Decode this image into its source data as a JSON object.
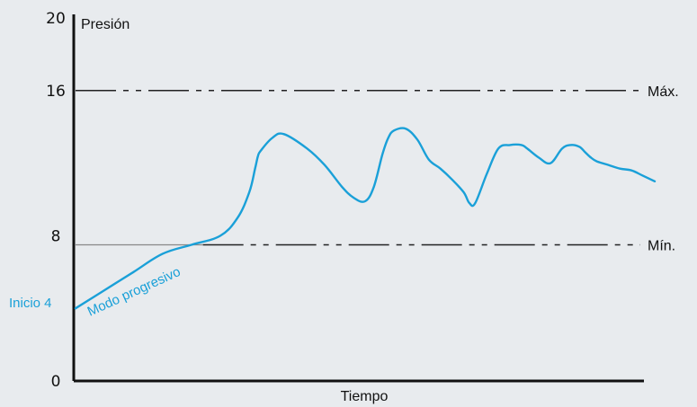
{
  "chart_data": {
    "type": "line",
    "xlabel": "Tiempo",
    "ylabel": "Presión",
    "ylim": [
      0,
      20
    ],
    "yticks": [
      "0",
      "8",
      "16",
      "20"
    ],
    "grid": false,
    "colors": {
      "curve": "#1aa0d8",
      "axes": "#111111",
      "reference": "#222222",
      "background": "#e8ebee"
    },
    "reference_lines": [
      {
        "label": "Máx.",
        "value": 16,
        "style": "dash-dot"
      },
      {
        "label": "Mín.",
        "value": 7.5,
        "style": "solid-then-dash-dot"
      }
    ],
    "annotations": {
      "start": "Inicio 4",
      "ramp": "Modo progresivo"
    },
    "series": [
      {
        "x": [
          0,
          5,
          10,
          15,
          20,
          25,
          28,
          30,
          31,
          31.5,
          32,
          34,
          36,
          40,
          43,
          46,
          48,
          50,
          51.5,
          53,
          54,
          55,
          57,
          59,
          61,
          63,
          65,
          67,
          68,
          69,
          71,
          73,
          75,
          77,
          78,
          80,
          82,
          84,
          85.5,
          87,
          88,
          89,
          90,
          92,
          94,
          96,
          98,
          100
        ],
        "y": [
          4.0,
          5.0,
          6.0,
          7.0,
          7.5,
          8.0,
          9.0,
          10.4,
          11.7,
          12.4,
          12.7,
          13.4,
          13.6,
          12.8,
          11.9,
          10.7,
          10.1,
          9.9,
          10.7,
          12.5,
          13.4,
          13.8,
          13.9,
          13.3,
          12.2,
          11.7,
          11.1,
          10.4,
          9.8,
          9.8,
          11.4,
          12.8,
          13.0,
          13.0,
          12.8,
          12.3,
          12.0,
          12.8,
          13.0,
          12.9,
          12.6,
          12.3,
          12.1,
          11.9,
          11.7,
          11.6,
          11.3,
          11.0
        ]
      }
    ]
  }
}
